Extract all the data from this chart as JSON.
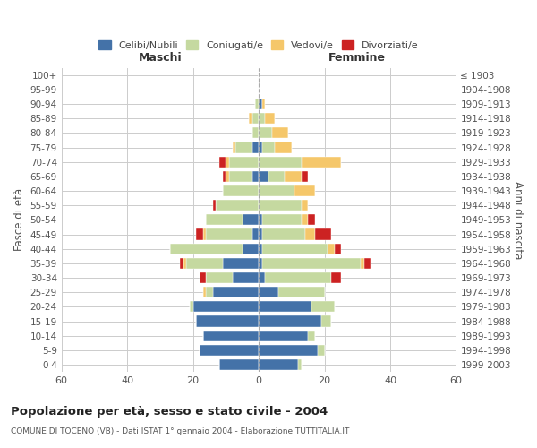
{
  "age_groups": [
    "0-4",
    "5-9",
    "10-14",
    "15-19",
    "20-24",
    "25-29",
    "30-34",
    "35-39",
    "40-44",
    "45-49",
    "50-54",
    "55-59",
    "60-64",
    "65-69",
    "70-74",
    "75-79",
    "80-84",
    "85-89",
    "90-94",
    "95-99",
    "100+"
  ],
  "birth_years": [
    "1999-2003",
    "1994-1998",
    "1989-1993",
    "1984-1988",
    "1979-1983",
    "1974-1978",
    "1969-1973",
    "1964-1968",
    "1959-1963",
    "1954-1958",
    "1949-1953",
    "1944-1948",
    "1939-1943",
    "1934-1938",
    "1929-1933",
    "1924-1928",
    "1919-1923",
    "1914-1918",
    "1909-1913",
    "1904-1908",
    "≤ 1903"
  ],
  "males": {
    "celibi": [
      12,
      18,
      17,
      19,
      20,
      14,
      8,
      11,
      5,
      2,
      5,
      0,
      0,
      2,
      0,
      2,
      0,
      0,
      0,
      0,
      0
    ],
    "coniugati": [
      0,
      0,
      0,
      0,
      1,
      2,
      8,
      11,
      22,
      14,
      11,
      13,
      11,
      7,
      9,
      5,
      2,
      2,
      1,
      0,
      0
    ],
    "vedovi": [
      0,
      0,
      0,
      0,
      0,
      1,
      0,
      1,
      0,
      1,
      0,
      0,
      0,
      1,
      1,
      1,
      0,
      1,
      0,
      0,
      0
    ],
    "divorziati": [
      0,
      0,
      0,
      0,
      0,
      0,
      2,
      1,
      0,
      2,
      0,
      1,
      0,
      1,
      2,
      0,
      0,
      0,
      0,
      0,
      0
    ]
  },
  "females": {
    "nubili": [
      12,
      18,
      15,
      19,
      16,
      6,
      2,
      1,
      1,
      1,
      1,
      0,
      0,
      3,
      0,
      1,
      0,
      0,
      1,
      0,
      0
    ],
    "coniugate": [
      1,
      2,
      2,
      3,
      7,
      14,
      20,
      30,
      20,
      13,
      12,
      13,
      11,
      5,
      13,
      4,
      4,
      2,
      0,
      0,
      0
    ],
    "vedove": [
      0,
      0,
      0,
      0,
      0,
      0,
      0,
      1,
      2,
      3,
      2,
      2,
      6,
      5,
      12,
      5,
      5,
      3,
      1,
      0,
      0
    ],
    "divorziate": [
      0,
      0,
      0,
      0,
      0,
      0,
      3,
      2,
      2,
      5,
      2,
      0,
      0,
      2,
      0,
      0,
      0,
      0,
      0,
      0,
      0
    ]
  },
  "colors": {
    "celibi": "#4472a8",
    "coniugati": "#c5d9a0",
    "vedovi": "#f5c76a",
    "divorziati": "#cc2222"
  },
  "xlim": 60,
  "title": "Popolazione per età, sesso e stato civile - 2004",
  "subtitle": "COMUNE DI TOCENO (VB) - Dati ISTAT 1° gennaio 2004 - Elaborazione TUTTITALIA.IT",
  "ylabel_left": "Fasce di età",
  "ylabel_right": "Anni di nascita",
  "xlabel_left": "Maschi",
  "xlabel_right": "Femmine"
}
